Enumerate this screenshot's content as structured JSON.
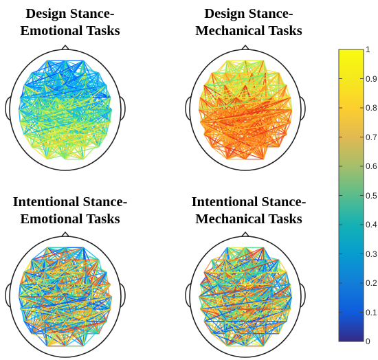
{
  "panels": [
    {
      "title_line1": "Design Stance-",
      "title_line2": "Emotional Tasks",
      "palette": "cool"
    },
    {
      "title_line1": "Design Stance-",
      "title_line2": "Mechanical Tasks",
      "palette": "warm"
    },
    {
      "title_line1": "Intentional Stance-",
      "title_line2": "Emotional Tasks",
      "palette": "mixed"
    },
    {
      "title_line1": "Intentional Stance-",
      "title_line2": "Mechanical Tasks",
      "palette": "mixed"
    }
  ],
  "colorbar": {
    "colormap": "parula",
    "min": 0,
    "max": 1,
    "ticks": [
      "0",
      "0.1",
      "0.2",
      "0.3",
      "0.4",
      "0.5",
      "0.6",
      "0.7",
      "0.8",
      "0.9",
      "1"
    ]
  }
}
